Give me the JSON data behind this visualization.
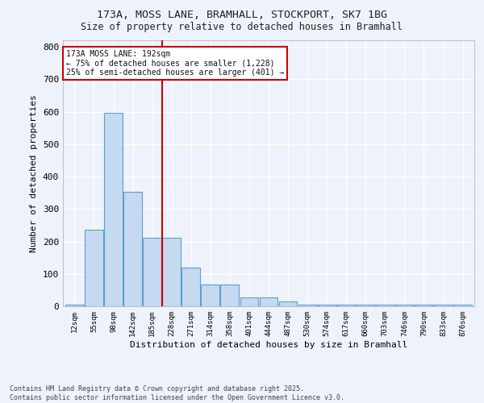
{
  "title_line1": "173A, MOSS LANE, BRAMHALL, STOCKPORT, SK7 1BG",
  "title_line2": "Size of property relative to detached houses in Bramhall",
  "xlabel": "Distribution of detached houses by size in Bramhall",
  "ylabel": "Number of detached properties",
  "categories": [
    "12sqm",
    "55sqm",
    "98sqm",
    "142sqm",
    "185sqm",
    "228sqm",
    "271sqm",
    "314sqm",
    "358sqm",
    "401sqm",
    "444sqm",
    "487sqm",
    "530sqm",
    "574sqm",
    "617sqm",
    "660sqm",
    "703sqm",
    "746sqm",
    "790sqm",
    "833sqm",
    "876sqm"
  ],
  "values": [
    5,
    237,
    597,
    352,
    210,
    210,
    120,
    67,
    67,
    28,
    28,
    15,
    5,
    5,
    5,
    5,
    5,
    5,
    5,
    5,
    5
  ],
  "bar_color": "#c5d9f0",
  "bar_edge_color": "#5a9fd4",
  "vline_x": 4.5,
  "vline_color": "#cc0000",
  "annotation_text": "173A MOSS LANE: 192sqm\n← 75% of detached houses are smaller (1,228)\n25% of semi-detached houses are larger (401) →",
  "annotation_box_color": "#cc0000",
  "footnote": "Contains HM Land Registry data © Crown copyright and database right 2025.\nContains public sector information licensed under the Open Government Licence v3.0.",
  "ylim": [
    0,
    820
  ],
  "background_color": "#eef2fb",
  "grid_color": "#ffffff",
  "yticks": [
    0,
    100,
    200,
    300,
    400,
    500,
    600,
    700,
    800
  ]
}
